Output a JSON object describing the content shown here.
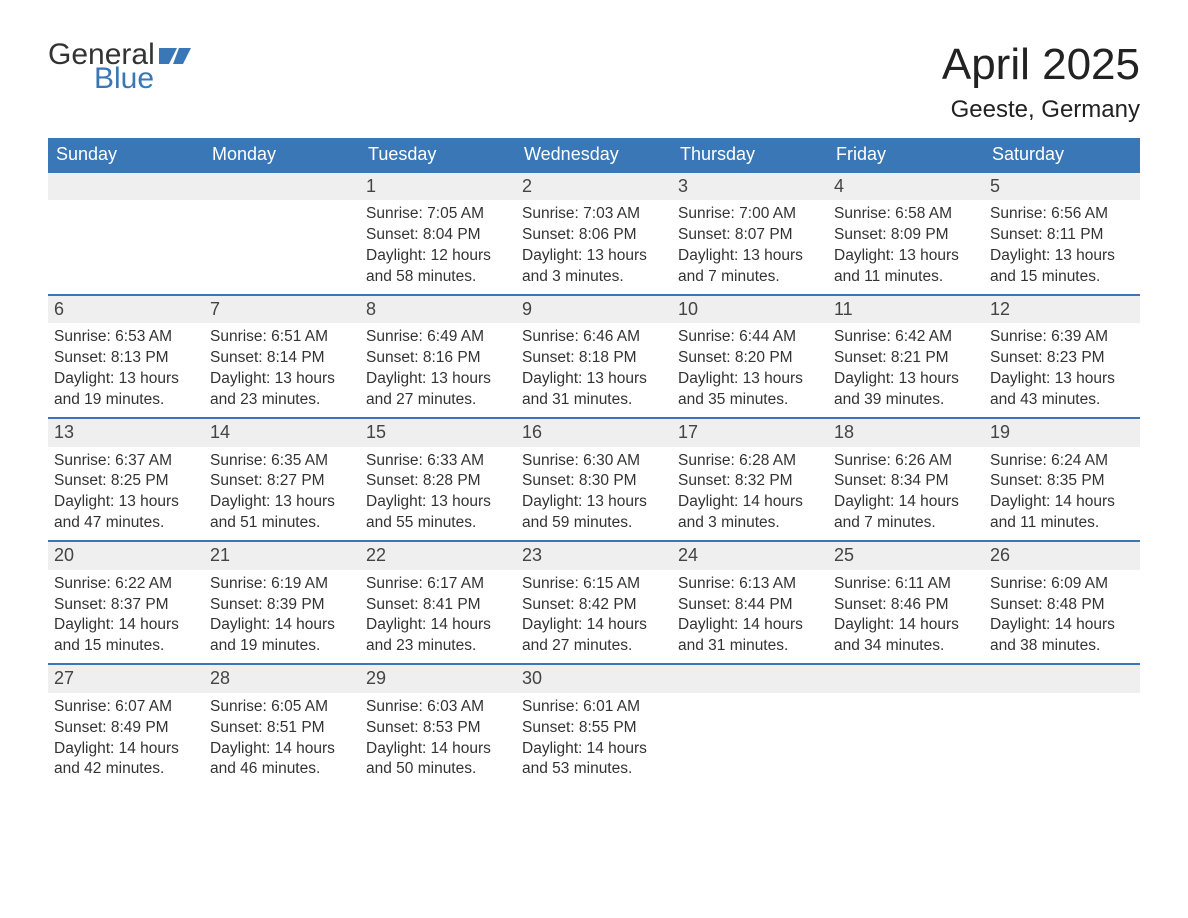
{
  "logo": {
    "text_general": "General",
    "text_blue": "Blue",
    "flag_color": "#3a77b7"
  },
  "title": "April 2025",
  "location": "Geeste, Germany",
  "colors": {
    "header_bg": "#3a77b7",
    "header_text": "#ffffff",
    "daynum_bg": "#efefef",
    "daynum_border": "#3a77b7",
    "body_bg": "#ffffff",
    "text": "#333333"
  },
  "weekdays": [
    "Sunday",
    "Monday",
    "Tuesday",
    "Wednesday",
    "Thursday",
    "Friday",
    "Saturday"
  ],
  "labels": {
    "sunrise": "Sunrise:",
    "sunset": "Sunset:",
    "daylight": "Daylight:"
  },
  "weeks": [
    [
      null,
      null,
      {
        "n": "1",
        "sunrise": "7:05 AM",
        "sunset": "8:04 PM",
        "daylight_l1": "12 hours",
        "daylight_l2": "and 58 minutes."
      },
      {
        "n": "2",
        "sunrise": "7:03 AM",
        "sunset": "8:06 PM",
        "daylight_l1": "13 hours",
        "daylight_l2": "and 3 minutes."
      },
      {
        "n": "3",
        "sunrise": "7:00 AM",
        "sunset": "8:07 PM",
        "daylight_l1": "13 hours",
        "daylight_l2": "and 7 minutes."
      },
      {
        "n": "4",
        "sunrise": "6:58 AM",
        "sunset": "8:09 PM",
        "daylight_l1": "13 hours",
        "daylight_l2": "and 11 minutes."
      },
      {
        "n": "5",
        "sunrise": "6:56 AM",
        "sunset": "8:11 PM",
        "daylight_l1": "13 hours",
        "daylight_l2": "and 15 minutes."
      }
    ],
    [
      {
        "n": "6",
        "sunrise": "6:53 AM",
        "sunset": "8:13 PM",
        "daylight_l1": "13 hours",
        "daylight_l2": "and 19 minutes."
      },
      {
        "n": "7",
        "sunrise": "6:51 AM",
        "sunset": "8:14 PM",
        "daylight_l1": "13 hours",
        "daylight_l2": "and 23 minutes."
      },
      {
        "n": "8",
        "sunrise": "6:49 AM",
        "sunset": "8:16 PM",
        "daylight_l1": "13 hours",
        "daylight_l2": "and 27 minutes."
      },
      {
        "n": "9",
        "sunrise": "6:46 AM",
        "sunset": "8:18 PM",
        "daylight_l1": "13 hours",
        "daylight_l2": "and 31 minutes."
      },
      {
        "n": "10",
        "sunrise": "6:44 AM",
        "sunset": "8:20 PM",
        "daylight_l1": "13 hours",
        "daylight_l2": "and 35 minutes."
      },
      {
        "n": "11",
        "sunrise": "6:42 AM",
        "sunset": "8:21 PM",
        "daylight_l1": "13 hours",
        "daylight_l2": "and 39 minutes."
      },
      {
        "n": "12",
        "sunrise": "6:39 AM",
        "sunset": "8:23 PM",
        "daylight_l1": "13 hours",
        "daylight_l2": "and 43 minutes."
      }
    ],
    [
      {
        "n": "13",
        "sunrise": "6:37 AM",
        "sunset": "8:25 PM",
        "daylight_l1": "13 hours",
        "daylight_l2": "and 47 minutes."
      },
      {
        "n": "14",
        "sunrise": "6:35 AM",
        "sunset": "8:27 PM",
        "daylight_l1": "13 hours",
        "daylight_l2": "and 51 minutes."
      },
      {
        "n": "15",
        "sunrise": "6:33 AM",
        "sunset": "8:28 PM",
        "daylight_l1": "13 hours",
        "daylight_l2": "and 55 minutes."
      },
      {
        "n": "16",
        "sunrise": "6:30 AM",
        "sunset": "8:30 PM",
        "daylight_l1": "13 hours",
        "daylight_l2": "and 59 minutes."
      },
      {
        "n": "17",
        "sunrise": "6:28 AM",
        "sunset": "8:32 PM",
        "daylight_l1": "14 hours",
        "daylight_l2": "and 3 minutes."
      },
      {
        "n": "18",
        "sunrise": "6:26 AM",
        "sunset": "8:34 PM",
        "daylight_l1": "14 hours",
        "daylight_l2": "and 7 minutes."
      },
      {
        "n": "19",
        "sunrise": "6:24 AM",
        "sunset": "8:35 PM",
        "daylight_l1": "14 hours",
        "daylight_l2": "and 11 minutes."
      }
    ],
    [
      {
        "n": "20",
        "sunrise": "6:22 AM",
        "sunset": "8:37 PM",
        "daylight_l1": "14 hours",
        "daylight_l2": "and 15 minutes."
      },
      {
        "n": "21",
        "sunrise": "6:19 AM",
        "sunset": "8:39 PM",
        "daylight_l1": "14 hours",
        "daylight_l2": "and 19 minutes."
      },
      {
        "n": "22",
        "sunrise": "6:17 AM",
        "sunset": "8:41 PM",
        "daylight_l1": "14 hours",
        "daylight_l2": "and 23 minutes."
      },
      {
        "n": "23",
        "sunrise": "6:15 AM",
        "sunset": "8:42 PM",
        "daylight_l1": "14 hours",
        "daylight_l2": "and 27 minutes."
      },
      {
        "n": "24",
        "sunrise": "6:13 AM",
        "sunset": "8:44 PM",
        "daylight_l1": "14 hours",
        "daylight_l2": "and 31 minutes."
      },
      {
        "n": "25",
        "sunrise": "6:11 AM",
        "sunset": "8:46 PM",
        "daylight_l1": "14 hours",
        "daylight_l2": "and 34 minutes."
      },
      {
        "n": "26",
        "sunrise": "6:09 AM",
        "sunset": "8:48 PM",
        "daylight_l1": "14 hours",
        "daylight_l2": "and 38 minutes."
      }
    ],
    [
      {
        "n": "27",
        "sunrise": "6:07 AM",
        "sunset": "8:49 PM",
        "daylight_l1": "14 hours",
        "daylight_l2": "and 42 minutes."
      },
      {
        "n": "28",
        "sunrise": "6:05 AM",
        "sunset": "8:51 PM",
        "daylight_l1": "14 hours",
        "daylight_l2": "and 46 minutes."
      },
      {
        "n": "29",
        "sunrise": "6:03 AM",
        "sunset": "8:53 PM",
        "daylight_l1": "14 hours",
        "daylight_l2": "and 50 minutes."
      },
      {
        "n": "30",
        "sunrise": "6:01 AM",
        "sunset": "8:55 PM",
        "daylight_l1": "14 hours",
        "daylight_l2": "and 53 minutes."
      },
      null,
      null,
      null
    ]
  ]
}
